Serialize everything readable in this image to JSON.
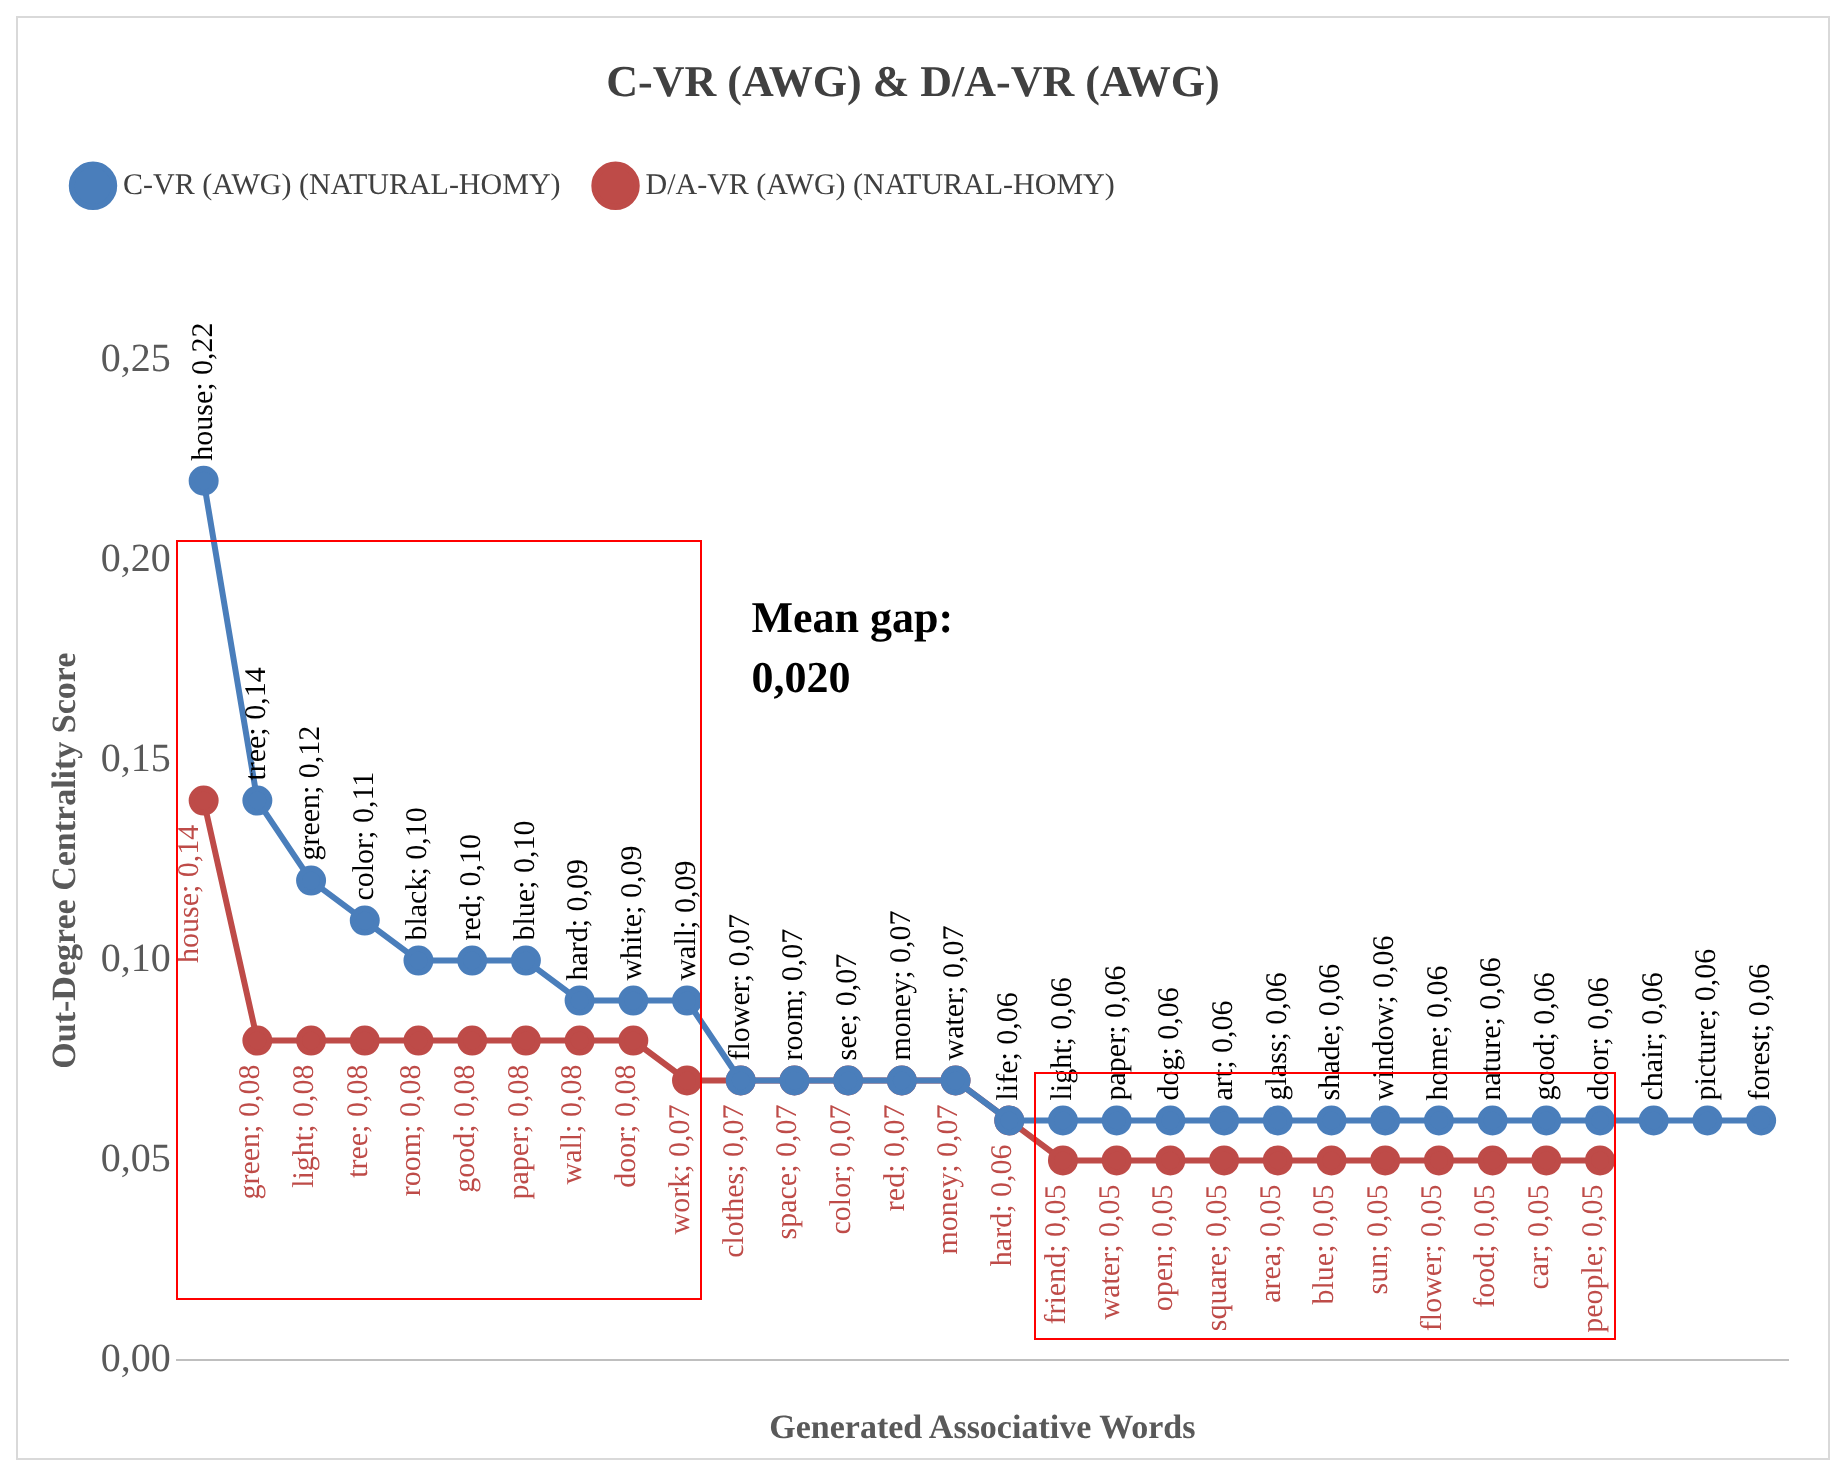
{
  "chart_data": {
    "type": "line",
    "title": "C-VR (AWG) & D/A-VR (AWG)",
    "xlabel": "Generated Associative Words",
    "ylabel": "Out-Degree Centrality Score",
    "categories": [
      null,
      null,
      null,
      null,
      null,
      null,
      null,
      null,
      null,
      null,
      null,
      null,
      null,
      null,
      null,
      null,
      null,
      null,
      null,
      null,
      null,
      null,
      null,
      null,
      null,
      null,
      null,
      null,
      null,
      null
    ],
    "series": [
      {
        "name": "C-VR (AWG) (NATURAL-HOMY)",
        "color": "#4a7ebb",
        "values": [
          0.22,
          0.14,
          0.12,
          0.11,
          0.1,
          0.1,
          0.1,
          0.09,
          0.09,
          0.09,
          0.07,
          0.07,
          0.07,
          0.07,
          0.07,
          0.06,
          0.06,
          0.06,
          0.06,
          0.06,
          0.06,
          0.06,
          0.06,
          0.06,
          0.06,
          0.06,
          0.06,
          0.06,
          0.06,
          0.06
        ],
        "value_labels": [
          "house; 0,22",
          "tree; 0,14",
          "green; 0,12",
          "color; 0,11",
          "black; 0,10",
          "red; 0,10",
          "blue; 0,10",
          "hard; 0,09",
          "white; 0,09",
          "wall; 0,09",
          "flower; 0,07",
          "room; 0,07",
          "see; 0,07",
          "money; 0,07",
          "water; 0,07",
          "life; 0,06",
          "light; 0,06",
          "paper; 0,06",
          "dog; 0,06",
          "art; 0,06",
          "glass; 0,06",
          "shade; 0,06",
          "window; 0,06",
          "home; 0,06",
          "nature; 0,06",
          "good; 0,06",
          "door; 0,06",
          "chair; 0,06",
          "picture; 0,06",
          "forest; 0,06"
        ]
      },
      {
        "name": "D/A-VR (AWG) (NATURAL-HOMY)",
        "color": "#be4b48",
        "values": [
          0.14,
          0.08,
          0.08,
          0.08,
          0.08,
          0.08,
          0.08,
          0.08,
          0.08,
          0.07,
          0.07,
          0.07,
          0.07,
          0.07,
          0.07,
          0.06,
          0.05,
          0.05,
          0.05,
          0.05,
          0.05,
          0.05,
          0.05,
          0.05,
          0.05,
          0.05,
          0.05,
          null,
          null,
          null
        ],
        "value_labels": [
          "house; 0,14",
          "green; 0,08",
          "light; 0,08",
          "tree; 0,08",
          "room; 0,08",
          "good; 0,08",
          "paper; 0,08",
          "wall; 0,08",
          "door; 0,08",
          "work; 0,07",
          "clothes; 0,07",
          "space; 0,07",
          "color; 0,07",
          "red; 0,07",
          "money; 0,07",
          "hard; 0,06",
          "friend; 0,05",
          "water; 0,05",
          "open; 0,05",
          "square; 0,05",
          "area; 0,05",
          "blue; 0,05",
          "sun; 0,05",
          "flower; 0,05",
          "food; 0,05",
          "car; 0,05",
          "people; 0,05",
          null,
          null,
          null
        ]
      }
    ],
    "ylim": [
      0,
      0.25
    ],
    "yticks": [
      {
        "value": 0,
        "label": "0,00"
      },
      {
        "value": 0.05,
        "label": "0,05"
      },
      {
        "value": 0.1,
        "label": "0,10"
      },
      {
        "value": 0.15,
        "label": "0,15"
      },
      {
        "value": 0.2,
        "label": "0,20"
      },
      {
        "value": 0.25,
        "label": "0,25"
      }
    ],
    "annotations": [
      "Mean gap:\n0,020"
    ],
    "grid": false,
    "legend": "top",
    "marker": "circle",
    "line_style": "solid"
  }
}
